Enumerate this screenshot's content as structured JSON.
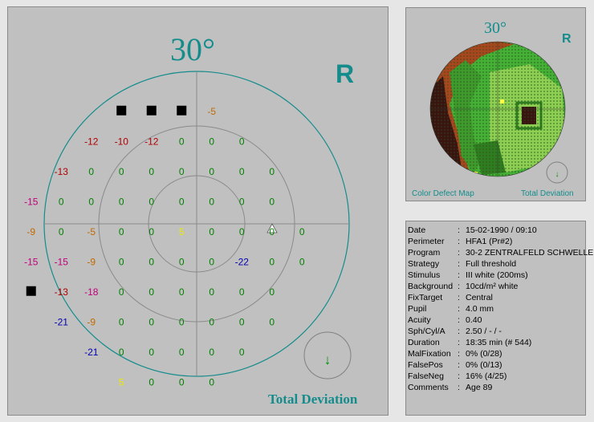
{
  "main": {
    "degree": "30°",
    "eye": "R",
    "label": "Total Deviation",
    "points": [
      {
        "x": -3,
        "y": 4,
        "v": "■",
        "c": "#000000"
      },
      {
        "x": -2,
        "y": 4,
        "v": "■",
        "c": "#000000"
      },
      {
        "x": -1,
        "y": 4,
        "v": "■",
        "c": "#000000"
      },
      {
        "x": 0,
        "y": 4,
        "v": "-5",
        "c": "#c06a00"
      },
      {
        "x": -4,
        "y": 3,
        "v": "-12",
        "c": "#b00000"
      },
      {
        "x": -3,
        "y": 3,
        "v": "-10",
        "c": "#b00000"
      },
      {
        "x": -2,
        "y": 3,
        "v": "-12",
        "c": "#b00000"
      },
      {
        "x": -1,
        "y": 3,
        "v": "0",
        "c": "#008000"
      },
      {
        "x": 0,
        "y": 3,
        "v": "0",
        "c": "#008000"
      },
      {
        "x": 1,
        "y": 3,
        "v": "0",
        "c": "#008000"
      },
      {
        "x": -5,
        "y": 2,
        "v": "-13",
        "c": "#b00000"
      },
      {
        "x": -4,
        "y": 2,
        "v": "0",
        "c": "#008000"
      },
      {
        "x": -3,
        "y": 2,
        "v": "0",
        "c": "#008000"
      },
      {
        "x": -2,
        "y": 2,
        "v": "0",
        "c": "#008000"
      },
      {
        "x": -1,
        "y": 2,
        "v": "0",
        "c": "#008000"
      },
      {
        "x": 0,
        "y": 2,
        "v": "0",
        "c": "#008000"
      },
      {
        "x": 1,
        "y": 2,
        "v": "0",
        "c": "#008000"
      },
      {
        "x": 2,
        "y": 2,
        "v": "0",
        "c": "#008000"
      },
      {
        "x": -6,
        "y": 1,
        "v": "-15",
        "c": "#c0007a"
      },
      {
        "x": -5,
        "y": 1,
        "v": "0",
        "c": "#008000"
      },
      {
        "x": -4,
        "y": 1,
        "v": "0",
        "c": "#008000"
      },
      {
        "x": -3,
        "y": 1,
        "v": "0",
        "c": "#008000"
      },
      {
        "x": -2,
        "y": 1,
        "v": "0",
        "c": "#008000"
      },
      {
        "x": -1,
        "y": 1,
        "v": "0",
        "c": "#008000"
      },
      {
        "x": 0,
        "y": 1,
        "v": "0",
        "c": "#008000"
      },
      {
        "x": 1,
        "y": 1,
        "v": "0",
        "c": "#008000"
      },
      {
        "x": 2,
        "y": 1,
        "v": "0",
        "c": "#008000"
      },
      {
        "x": -6,
        "y": 0,
        "v": "-9",
        "c": "#c06a00"
      },
      {
        "x": -5,
        "y": 0,
        "v": "0",
        "c": "#008000"
      },
      {
        "x": -4,
        "y": 0,
        "v": "-5",
        "c": "#c06a00"
      },
      {
        "x": -3,
        "y": 0,
        "v": "0",
        "c": "#008000"
      },
      {
        "x": -2,
        "y": 0,
        "v": "0",
        "c": "#008000"
      },
      {
        "x": -1,
        "y": 0,
        "v": "5",
        "c": "#e8e800"
      },
      {
        "x": 0,
        "y": 0,
        "v": "0",
        "c": "#008000"
      },
      {
        "x": 1,
        "y": 0,
        "v": "0",
        "c": "#008000"
      },
      {
        "x": 2,
        "y": 0,
        "v": "0",
        "c": "#008000"
      },
      {
        "x": 3,
        "y": 0,
        "v": "0",
        "c": "#008000"
      },
      {
        "x": -6,
        "y": -1,
        "v": "-15",
        "c": "#c0007a"
      },
      {
        "x": -5,
        "y": -1,
        "v": "-15",
        "c": "#c0007a"
      },
      {
        "x": -4,
        "y": -1,
        "v": "-9",
        "c": "#c06a00"
      },
      {
        "x": -3,
        "y": -1,
        "v": "0",
        "c": "#008000"
      },
      {
        "x": -2,
        "y": -1,
        "v": "0",
        "c": "#008000"
      },
      {
        "x": -1,
        "y": -1,
        "v": "0",
        "c": "#008000"
      },
      {
        "x": 0,
        "y": -1,
        "v": "0",
        "c": "#008000"
      },
      {
        "x": 1,
        "y": -1,
        "v": "-22",
        "c": "#0000b0"
      },
      {
        "x": 2,
        "y": -1,
        "v": "0",
        "c": "#008000"
      },
      {
        "x": 3,
        "y": -1,
        "v": "0",
        "c": "#008000"
      },
      {
        "x": -6,
        "y": -2,
        "v": "■",
        "c": "#000000"
      },
      {
        "x": -5,
        "y": -2,
        "v": "-13",
        "c": "#b00000"
      },
      {
        "x": -4,
        "y": -2,
        "v": "-18",
        "c": "#c0007a"
      },
      {
        "x": -3,
        "y": -2,
        "v": "0",
        "c": "#008000"
      },
      {
        "x": -2,
        "y": -2,
        "v": "0",
        "c": "#008000"
      },
      {
        "x": -1,
        "y": -2,
        "v": "0",
        "c": "#008000"
      },
      {
        "x": 0,
        "y": -2,
        "v": "0",
        "c": "#008000"
      },
      {
        "x": 1,
        "y": -2,
        "v": "0",
        "c": "#008000"
      },
      {
        "x": 2,
        "y": -2,
        "v": "0",
        "c": "#008000"
      },
      {
        "x": -5,
        "y": -3,
        "v": "-21",
        "c": "#0000b0"
      },
      {
        "x": -4,
        "y": -3,
        "v": "-9",
        "c": "#c06a00"
      },
      {
        "x": -3,
        "y": -3,
        "v": "0",
        "c": "#008000"
      },
      {
        "x": -2,
        "y": -3,
        "v": "0",
        "c": "#008000"
      },
      {
        "x": -1,
        "y": -3,
        "v": "0",
        "c": "#008000"
      },
      {
        "x": 0,
        "y": -3,
        "v": "0",
        "c": "#008000"
      },
      {
        "x": 1,
        "y": -3,
        "v": "0",
        "c": "#008000"
      },
      {
        "x": 2,
        "y": -3,
        "v": "0",
        "c": "#008000"
      },
      {
        "x": -4,
        "y": -4,
        "v": "-21",
        "c": "#0000b0"
      },
      {
        "x": -3,
        "y": -4,
        "v": "0",
        "c": "#008000"
      },
      {
        "x": -2,
        "y": -4,
        "v": "0",
        "c": "#008000"
      },
      {
        "x": -1,
        "y": -4,
        "v": "0",
        "c": "#008000"
      },
      {
        "x": 0,
        "y": -4,
        "v": "0",
        "c": "#008000"
      },
      {
        "x": 1,
        "y": -4,
        "v": "0",
        "c": "#008000"
      },
      {
        "x": -3,
        "y": -5,
        "v": "5",
        "c": "#e8e800"
      },
      {
        "x": -2,
        "y": -5,
        "v": "0",
        "c": "#008000"
      },
      {
        "x": -1,
        "y": -5,
        "v": "0",
        "c": "#008000"
      },
      {
        "x": 0,
        "y": -5,
        "v": "0",
        "c": "#008000"
      }
    ]
  },
  "cdm": {
    "degree": "30°",
    "eye": "R",
    "left_caption": "Color Defect Map",
    "right_caption": "Total Deviation"
  },
  "info": {
    "rows": [
      {
        "k": "Date",
        "v": "15-02-1990 / 09:10"
      },
      {
        "k": "Perimeter",
        "v": "HFA1  (Pr#2)"
      },
      {
        "k": "Program",
        "v": "30-2 ZENTRALFELD SCHWELLE"
      },
      {
        "k": "Strategy",
        "v": "Full threshold"
      },
      {
        "k": "Stimulus",
        "v": "III  white (200ms)"
      },
      {
        "k": "Background",
        "v": "10cd/m²  white"
      },
      {
        "k": "FixTarget",
        "v": "Central"
      },
      {
        "k": "Pupil",
        "v": " 4.0 mm"
      },
      {
        "k": "Acuity",
        "v": "0.40"
      },
      {
        "k": "Sph/Cyl/A",
        "v": "2.50 / - / -"
      },
      {
        "k": "Duration",
        "v": "18:35 min  (# 544)"
      },
      {
        "k": "MalFixation",
        "v": "0% (0/28)"
      },
      {
        "k": "FalsePos",
        "v": "0% (0/13)"
      },
      {
        "k": "FalseNeg",
        "v": "16% (4/25)"
      },
      {
        "k": "Comments",
        "v": "Age  89"
      }
    ]
  },
  "colors": {
    "teal": "#158c8c",
    "panel": "#c0c0c0"
  }
}
